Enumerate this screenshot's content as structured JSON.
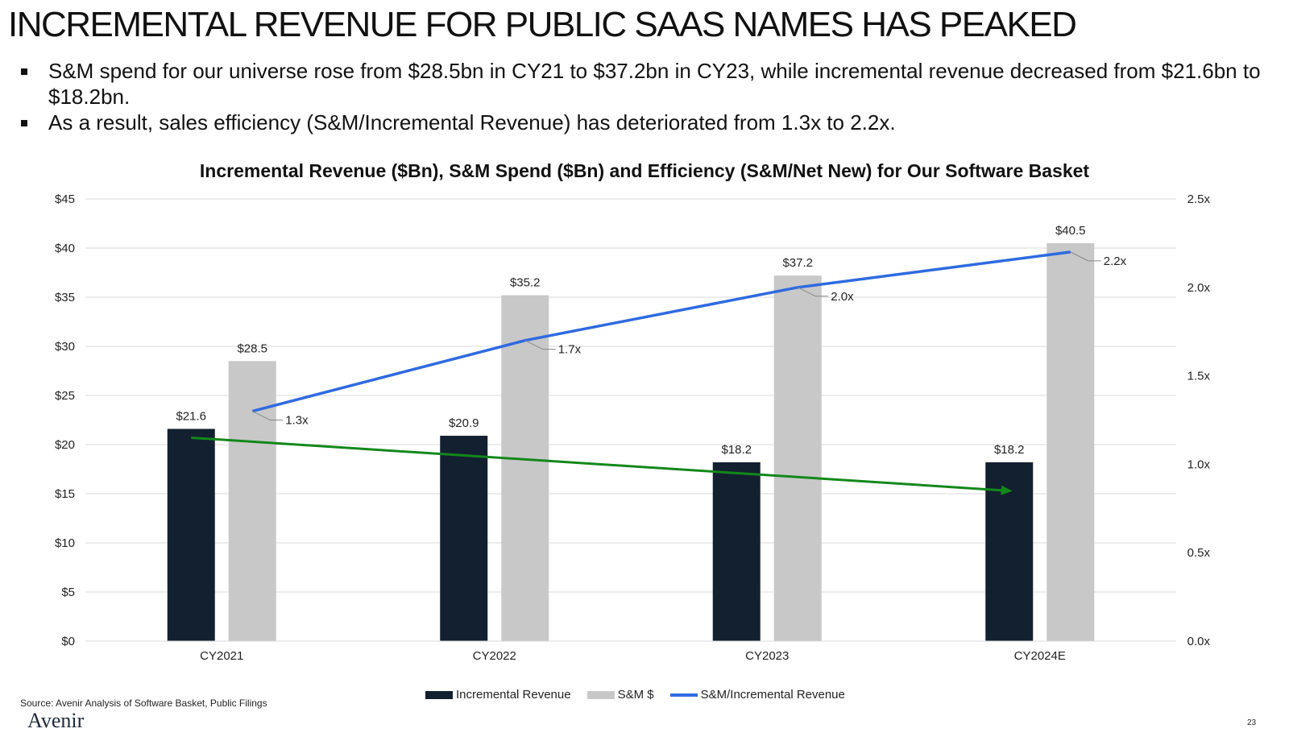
{
  "slide": {
    "title": "INCREMENTAL REVENUE FOR PUBLIC SAAS NAMES HAS PEAKED",
    "bullets": [
      "S&M spend for our universe rose from $28.5bn in CY21 to $37.2bn in CY23, while incremental revenue decreased from $21.6bn to $18.2bn.",
      "As a result, sales efficiency (S&M/Incremental Revenue) has deteriorated from 1.3x to 2.2x."
    ],
    "source": "Source: Avenir Analysis of Software Basket, Public Filings",
    "logo_text": "Avenir",
    "page_number": "23"
  },
  "chart_data": {
    "type": "bar",
    "title": "Incremental Revenue ($Bn), S&M Spend ($Bn) and Efficiency (S&M/Net New) for Our Software Basket",
    "categories": [
      "CY2021",
      "CY2022",
      "CY2023",
      "CY2024E"
    ],
    "series": [
      {
        "name": "Incremental Revenue",
        "type": "bar",
        "axis": "left",
        "color": "#13202f",
        "values": [
          21.6,
          20.9,
          18.2,
          18.2
        ],
        "labels": [
          "$21.6",
          "$20.9",
          "$18.2",
          "$18.2"
        ]
      },
      {
        "name": "S&M $",
        "type": "bar",
        "axis": "left",
        "color": "#c8c8c8",
        "values": [
          28.5,
          35.2,
          37.2,
          40.5
        ],
        "labels": [
          "$28.5",
          "$35.2",
          "$37.2",
          "$40.5"
        ]
      },
      {
        "name": "S&M/Incremental Revenue",
        "type": "line",
        "axis": "right",
        "color": "#2f6ae0",
        "values": [
          1.3,
          1.7,
          2.0,
          2.2
        ],
        "labels": [
          "1.3x",
          "1.7x",
          "2.0x",
          "2.2x"
        ]
      }
    ],
    "trendline": {
      "color": "#13881b",
      "from": {
        "category": "CY2021",
        "value": 20.7
      },
      "to": {
        "category": "CY2024E",
        "value": 15.3
      }
    },
    "y_left": {
      "ylim": [
        0,
        45
      ],
      "ticks": [
        0,
        5,
        10,
        15,
        20,
        25,
        30,
        35,
        40,
        45
      ],
      "tick_labels": [
        "$0",
        "$5",
        "$10",
        "$15",
        "$20",
        "$25",
        "$30",
        "$35",
        "$40",
        "$45"
      ]
    },
    "y_right": {
      "ylim": [
        0,
        2.5
      ],
      "ticks": [
        0,
        0.5,
        1.0,
        1.5,
        2.0,
        2.5
      ],
      "tick_labels": [
        "0.0x",
        "0.5x",
        "1.0x",
        "1.5x",
        "2.0x",
        "2.5x"
      ]
    },
    "grid": true,
    "legend": "bottom"
  }
}
